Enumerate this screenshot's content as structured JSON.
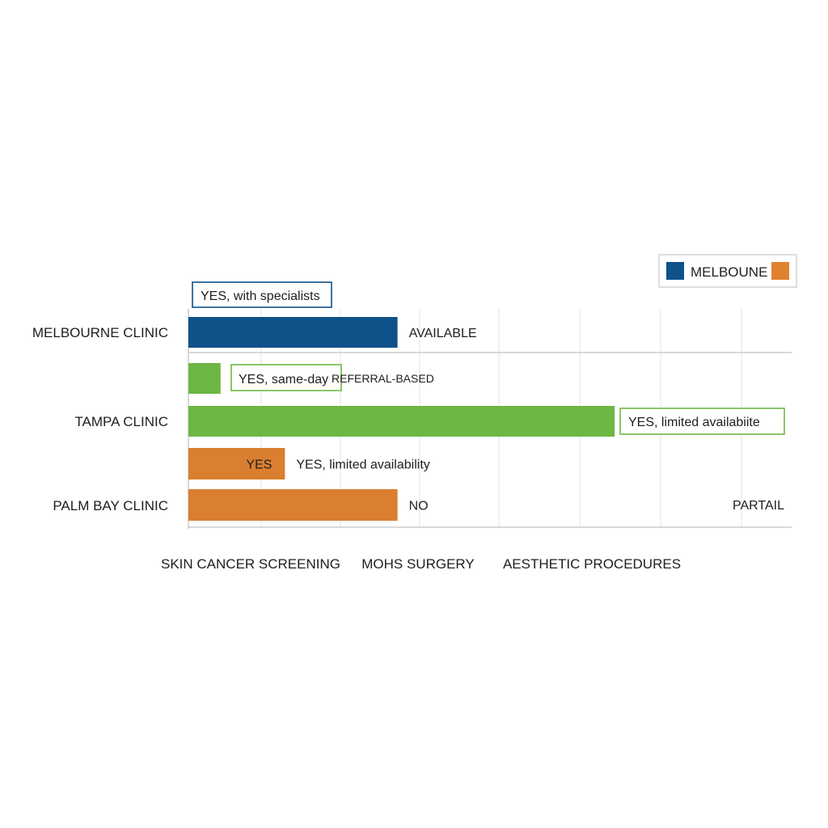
{
  "chart_data": {
    "type": "bar",
    "orientation": "horizontal",
    "title": "",
    "xlabel": "",
    "ylabel": "",
    "grid": true,
    "legend_position": "top-right",
    "categories": [
      "MELBOURNE CLINIC",
      "TAMPA CLINIC",
      "PALM BAY CLINIC"
    ],
    "x_tick_labels": [
      "SKIN CANCER SCREENING",
      "MOHS SURGERY",
      "AESTHETIC PROCEDURES"
    ],
    "legend": [
      {
        "label": "MELBOUNE",
        "color": "#0f5189"
      },
      {
        "label": "",
        "color": "#e0812f"
      }
    ],
    "colors": {
      "melbourne": "#0f5189",
      "tampa": "#6db744",
      "palm_bay": "#d97f2f",
      "grid": "#e3e3e3",
      "axis": "#cccccc"
    },
    "bars": [
      {
        "category": "MELBOURNE CLINIC",
        "row": 0,
        "value": 2.6,
        "color": "#0f5189",
        "inside_label": "",
        "outside_label": "AVAILABLE"
      },
      {
        "category": "TAMPA CLINIC",
        "row": 1,
        "value": 0.4,
        "color": "#6db744",
        "inside_label": "",
        "outside_label": ""
      },
      {
        "category": "TAMPA CLINIC",
        "row": 2,
        "value": 5.3,
        "color": "#6db744",
        "inside_label": "",
        "outside_label": ""
      },
      {
        "category": "PALM BAY CLINIC",
        "row": 3,
        "value": 1.2,
        "color": "#d97f2f",
        "inside_label": "YES",
        "outside_label": "YES, limited availability"
      },
      {
        "category": "PALM BAY CLINIC",
        "row": 4,
        "value": 2.6,
        "color": "#d97f2f",
        "inside_label": "",
        "outside_label": "NO"
      }
    ],
    "annotations": [
      {
        "text": "YES, with specialists",
        "box_color": "#0f5189"
      },
      {
        "text": "YES, same-day",
        "box_color": "#6db744"
      },
      {
        "text": "REFERRAL-BASED",
        "box_color": ""
      },
      {
        "text": "YES, limited availabiite",
        "box_color": "#6db744"
      },
      {
        "text": "PARTAIL",
        "box_color": ""
      }
    ]
  }
}
